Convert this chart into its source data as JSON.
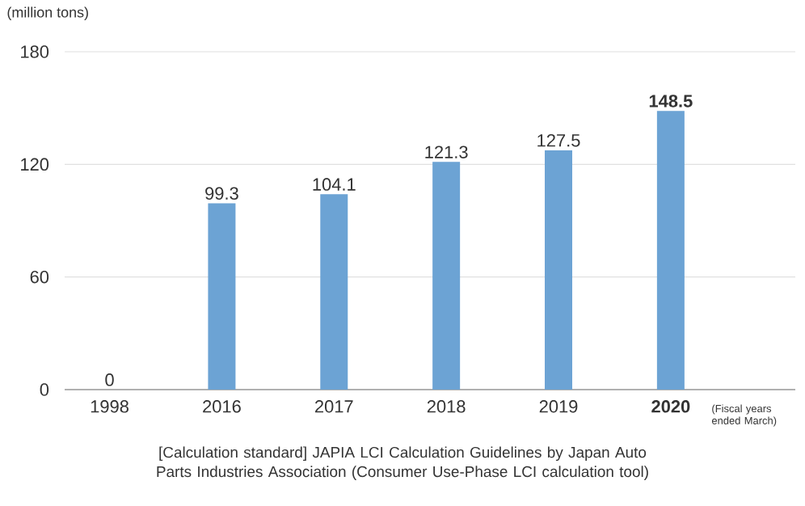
{
  "chart_data": {
    "type": "bar",
    "ylabel": "(million tons)",
    "categories": [
      "1998",
      "2016",
      "2017",
      "2018",
      "2019",
      "2020"
    ],
    "values": [
      0,
      99.3,
      104.1,
      121.3,
      127.5,
      148.5
    ],
    "color": "#6ca3d4",
    "ylim": [
      0,
      180
    ],
    "yticks": [
      0,
      60,
      120,
      180
    ],
    "grid": "y",
    "data_labels": true,
    "annotations": [
      "(Fiscal years ended March)",
      "[Calculation standard] JAPIA LCI Calculation Guidelines by Japan Auto Parts Industries Association (Consumer Use-Phase LCI calculation tool)"
    ]
  }
}
